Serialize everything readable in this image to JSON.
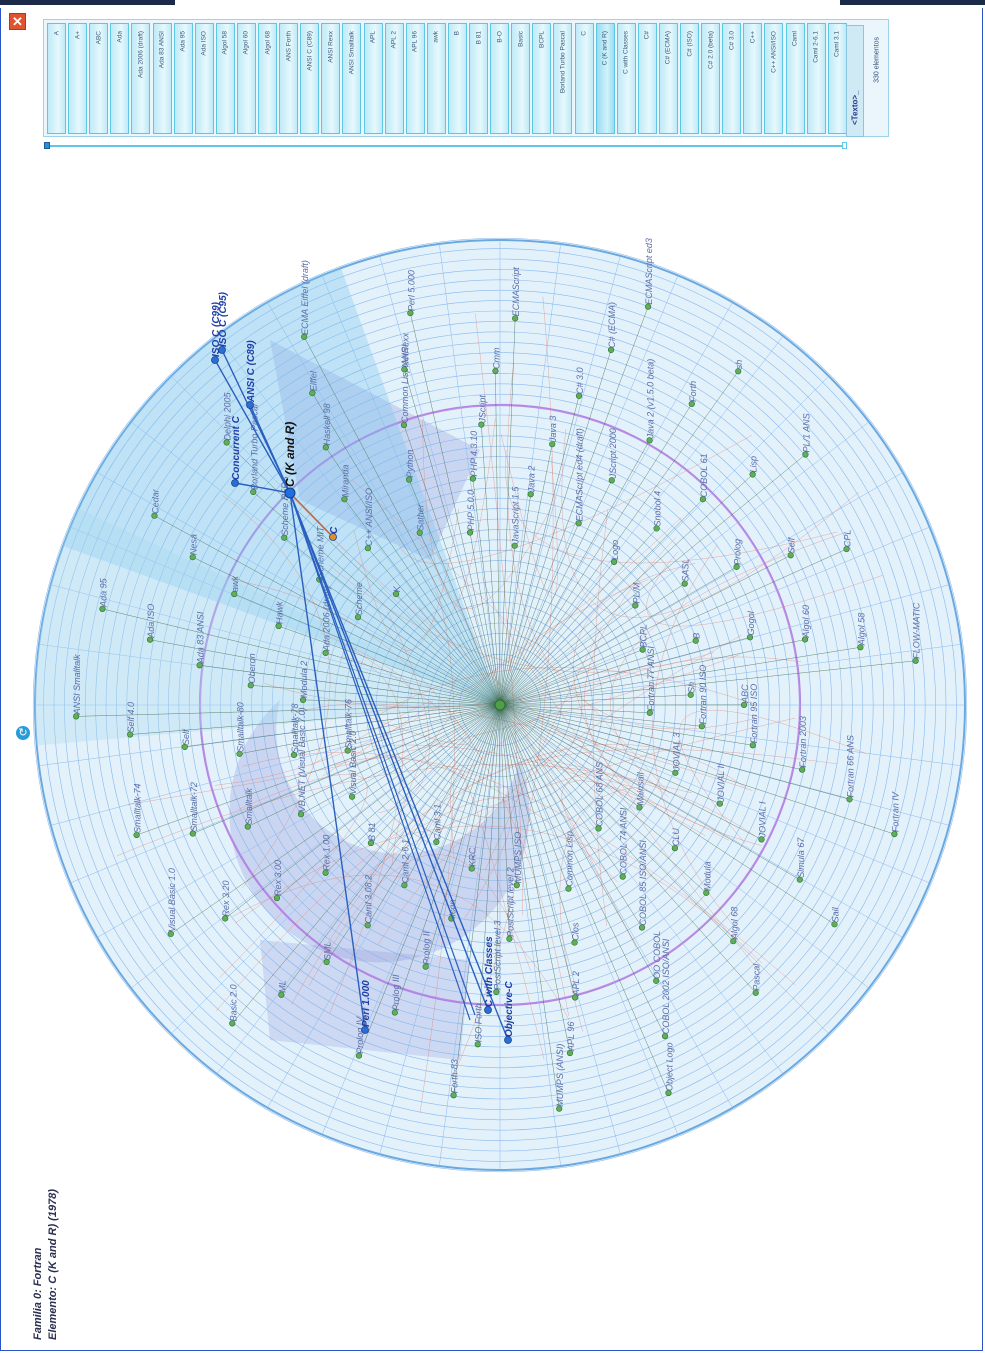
{
  "window": {
    "close_label": "✕",
    "refresh_icon": "refresh-icon",
    "accent": "#2a55c8"
  },
  "info": {
    "family": "Familia 0: Fortran",
    "element": "Elemento: C (K and R) (1978)"
  },
  "list": {
    "items": [
      "A",
      "A+",
      "ABC",
      "Ada",
      "Ada 2006 (draft)",
      "Ada 83 ANSI",
      "Ada 95",
      "Ada ISO",
      "Algol 58",
      "Algol 60",
      "Algol 68",
      "ANS Forth",
      "ANSI C (C89)",
      "ANSI Rexx",
      "ANSI Smalltalk",
      "APL",
      "APL 2",
      "APL 96",
      "awk",
      "B",
      "B 81",
      "B-O",
      "Basic",
      "BCPL",
      "Borland Turbo Pascal",
      "C",
      "C (K and R)",
      "C with Classes",
      "C#",
      "C# (ECMA)",
      "C# (ISO)",
      "C# 2.0 (beta)",
      "C# 3.0",
      "C++",
      "C++ ANSI/ISO",
      "Caml",
      "Caml 2-6.1",
      "Caml 3.1"
    ],
    "search_placeholder": "<Texto>_",
    "count": "330 elementos"
  },
  "viz": {
    "center": "C (K and R)",
    "focus_nodes": [
      "Concurrent C",
      "ANSI C (C89)",
      "ISO C (C99)",
      "ISO C (C95)",
      "C",
      "Objective-C",
      "C with Classes",
      "Perl 1.000"
    ],
    "labels": [
      "Fortran 77 ANSI",
      "Fortran 90 ISO",
      "Fortran 95 ISO",
      "Fortran 2003",
      "Fortran 66 ANS",
      "Fortran IV",
      "JOVIAL 3",
      "JOVIAL II",
      "JOVIAL I",
      "Simula 67",
      "Sail",
      "Mainsail",
      "CLU",
      "Modula",
      "Algol 68",
      "Pascal",
      "COBOL 68 ANS",
      "COBOL 74 ANSI",
      "COBOL 85 ISO/ANSI",
      "OO COBOL",
      "COBOL 2002 ISO/ANSI",
      "Object Logo",
      "Common Lisp",
      "Clos",
      "APL 2",
      "APL 96",
      "MUMPS (ANSI)",
      "MUMPS ISO",
      "PostScript level 2",
      "PostScript level 3",
      "ISO Forth",
      "Forth-83",
      "KRC",
      "Icon",
      "Prolog II",
      "Prolog III",
      "Prolog IV",
      "Caml 3.1",
      "Caml 2-6.1",
      "Caml 3.08.2",
      "SML",
      "ML",
      "Basic 2.0",
      "B 81",
      "Rex 1.00",
      "Rex 3.00",
      "Rex 3.20",
      "Visual Basic 1.0",
      "Visual Basic 2.0",
      "VB.NET (Visual Basic 7.0)",
      "Smalltalk",
      "Smalltalk-72",
      "Smalltalk-74",
      "Smalltalk-76",
      "Smalltalk-78",
      "Smalltalk-80",
      "Self",
      "Self 4.0",
      "ANSI Smalltalk",
      "Modula 2",
      "Oberon",
      "Ada 83 ANSI",
      "Ada ISO",
      "Ada 95",
      "Ada 2006 (draft)",
      "Hawk",
      "awk",
      "Nesa",
      "Cedar",
      "Scheme",
      "Scheme MIT",
      "Scheme R5RS",
      "Borland Turbo Pascal",
      "Delphi 2005",
      "K",
      "C++ ANSI/ISO",
      "Miranda",
      "Haskell 98",
      "Eiffel",
      "ECMA Eiffel (draft)",
      "Sather",
      "Python",
      "Common Lisp ANSI",
      "NetRexx",
      "Perl 5.000",
      "PHP 5.0.0",
      "PHP 4.3.10",
      "JScript",
      "Cmm",
      "ECMAScript",
      "JavaScript 1.5",
      "Java 2",
      "Java 3",
      "C# 3.0",
      "C# (ECMA)",
      "ECMAScript ed3",
      "ECMAScript ed4 (draft)",
      "JScript 2000",
      "Java 2 (v1.5.0 beta)",
      "Forth",
      "sh",
      "Logo",
      "Snobol 4",
      "COBOL 61",
      "Lisp",
      "PL/1 ANS",
      "PL/M",
      "SASL",
      "Prolog",
      "Self",
      "CPL",
      "BCPL",
      "B",
      "Gogol",
      "Algol 60",
      "Algol 58",
      "FLOW-MATIC",
      "Sh",
      "ABC"
    ]
  }
}
